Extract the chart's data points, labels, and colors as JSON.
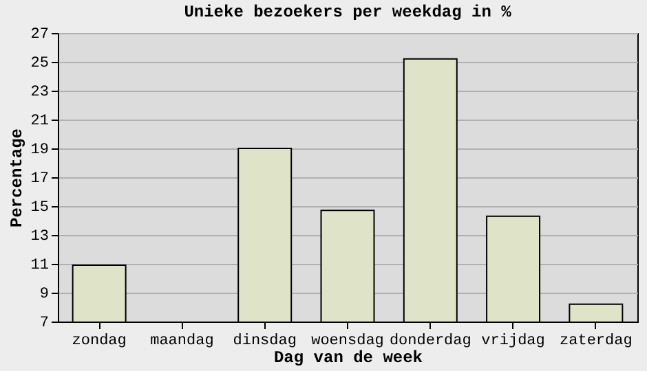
{
  "chart_data": {
    "type": "bar",
    "title": "Unieke bezoekers per weekdag in %",
    "xlabel": "Dag van de week",
    "ylabel": "Percentage",
    "categories": [
      "zondag",
      "maandag",
      "dinsdag",
      "woensdag",
      "donderdag",
      "vrijdag",
      "zaterdag"
    ],
    "values": [
      10.9,
      null,
      19,
      14.7,
      25.2,
      14.3,
      8.2
    ],
    "color": "#dfe4c9",
    "ylim": [
      7,
      27
    ],
    "yticks": [
      7,
      9,
      11,
      13,
      15,
      17,
      19,
      21,
      23,
      25,
      27
    ],
    "grid": "y"
  }
}
